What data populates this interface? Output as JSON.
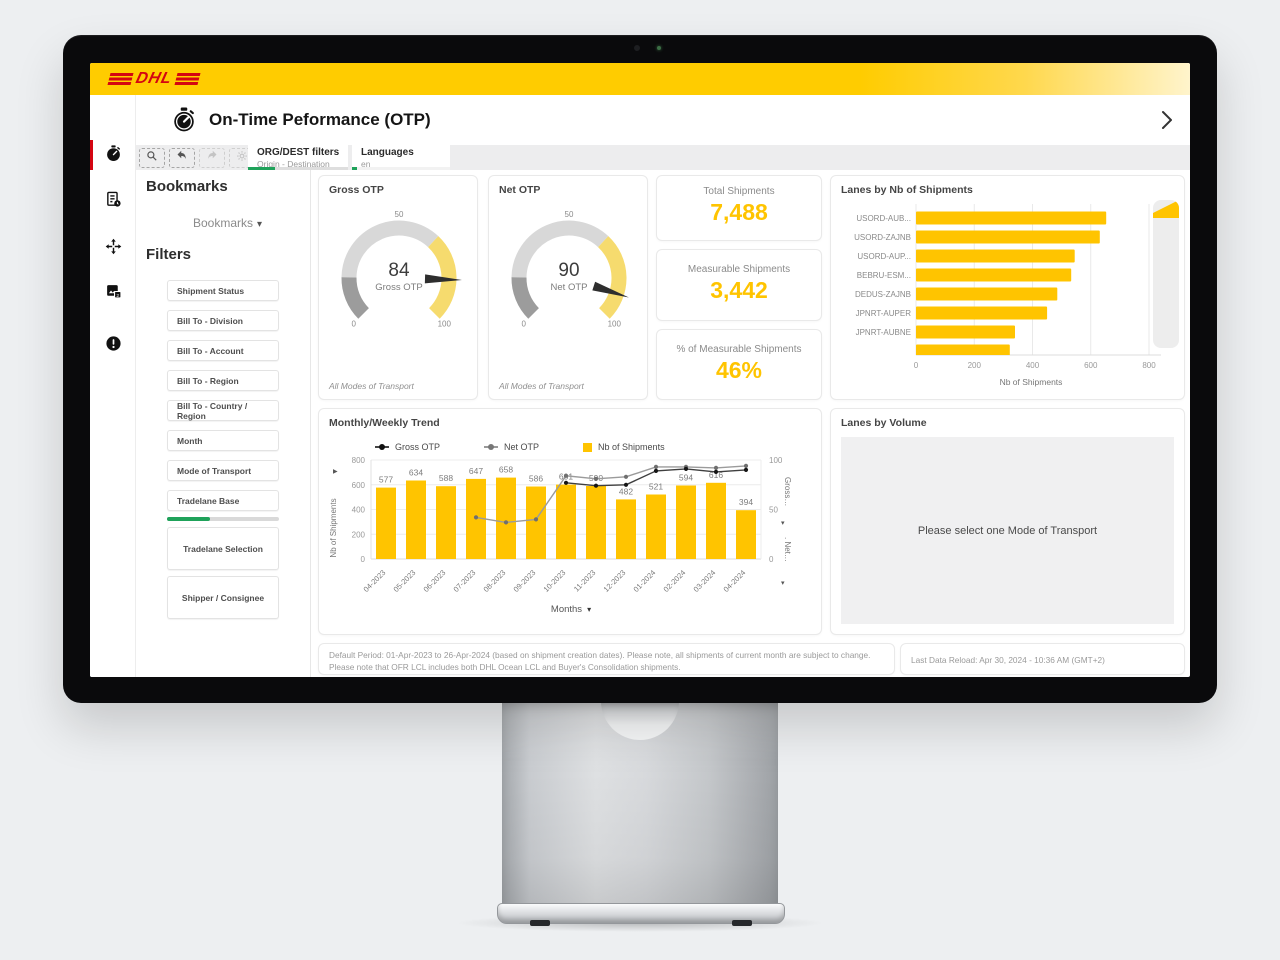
{
  "brand": {
    "name": "DHL"
  },
  "ui_colors": {
    "red": "#D40511",
    "yellow": "#FFCC00",
    "bar_yellow": "#FFC400",
    "green": "#1FA25A"
  },
  "header": {
    "title": "On-Time Peformance (OTP)"
  },
  "tabs": [
    {
      "label": "ORG/DEST filters",
      "sublabel": "Origin - Destination"
    },
    {
      "label": "Languages",
      "sublabel": "en"
    }
  ],
  "toolbar_icons": [
    "search-icon",
    "undo-icon",
    "forward-icon",
    "settings-icon"
  ],
  "sidebar_icons": [
    "stopwatch-icon",
    "report-icon",
    "move-icon",
    "image-icon",
    "alert-icon"
  ],
  "bookmarks": {
    "heading": "Bookmarks",
    "dropdown_label": "Bookmarks",
    "filters_heading": "Filters",
    "filter_buttons": [
      "Shipment Status",
      "Bill To - Division",
      "Bill To - Account",
      "Bill To - Region",
      "Bill To - Country / Region",
      "Month",
      "Mode of Transport",
      "Tradelane Base"
    ],
    "selection_progress": {
      "fraction": 0.38
    },
    "big_buttons": [
      "Tradelane Selection",
      "Shipper / Consignee"
    ]
  },
  "kpis": [
    {
      "label": "Total Shipments",
      "value": "7,488"
    },
    {
      "label": "Measurable Shipments",
      "value": "3,442"
    },
    {
      "label": "% of Measurable Shipments",
      "value": "46%"
    }
  ],
  "lanes_volume": {
    "title": "Lanes by Volume",
    "placeholder": "Please select one Mode of Transport"
  },
  "footer": {
    "default_period_line1": "Default Period: 01-Apr-2023 to 26-Apr-2024 (based on shipment creation dates). Please note, all shipments of current month are subject to change.",
    "default_period_line2": "Please note that OFR LCL includes both DHL Ocean LCL and Buyer's Consolidation shipments.",
    "last_reload": "Last Data Reload: Apr 30, 2024 - 10:36 AM (GMT+2)"
  },
  "chart_data": [
    {
      "type": "gauge",
      "title": "Gross OTP",
      "value": 84,
      "center_label": "Gross OTP",
      "min": 0,
      "max": 100,
      "ticks": [
        0,
        50,
        100
      ],
      "segments": [
        {
          "from": 0,
          "to": 17,
          "color": "#9C9C9C"
        },
        {
          "from": 17,
          "to": 66,
          "color": "#D8D8D8"
        },
        {
          "from": 66,
          "to": 100,
          "color": "#F6DB6E"
        }
      ],
      "footnote": "All Modes of Transport"
    },
    {
      "type": "gauge",
      "title": "Net OTP",
      "value": 90,
      "center_label": "Net OTP",
      "min": 0,
      "max": 100,
      "ticks": [
        0,
        50,
        100
      ],
      "segments": [
        {
          "from": 0,
          "to": 17,
          "color": "#9C9C9C"
        },
        {
          "from": 17,
          "to": 66,
          "color": "#D8D8D8"
        },
        {
          "from": 66,
          "to": 100,
          "color": "#F6DB6E"
        }
      ],
      "footnote": "All Modes of Transport"
    },
    {
      "type": "bar",
      "orientation": "horizontal",
      "title": "Lanes by Nb of Shipments",
      "categories": [
        "USORD-AUB...",
        "USORD-ZAJNB",
        "USORD-AUP...",
        "BEBRU-ESM...",
        "DEDUS-ZAJNB",
        "JPNRT-AUPER",
        "JPNRT-AUBNE",
        ""
      ],
      "values": [
        653,
        631,
        545,
        533,
        485,
        450,
        340,
        322
      ],
      "xlabel": "Nb of Shipments",
      "xticks": [
        0,
        200,
        400,
        600,
        800
      ],
      "xmax": 800,
      "bar_color": "#FFC400",
      "grid": true
    },
    {
      "type": "combo",
      "title": "Monthly/Weekly Trend",
      "categories": [
        "04-2023",
        "05-2023",
        "06-2023",
        "07-2023",
        "08-2023",
        "09-2023",
        "10-2023",
        "11-2023",
        "12-2023",
        "01-2024",
        "02-2024",
        "03-2024",
        "04-2024"
      ],
      "series": [
        {
          "name": "Gross OTP",
          "type": "line",
          "axis": "right",
          "color": "#3F3F3F",
          "marker_color": "#151515",
          "values": [
            null,
            null,
            null,
            null,
            null,
            null,
            77,
            74,
            75,
            89,
            91,
            88,
            90
          ]
        },
        {
          "name": "Net OTP",
          "type": "line",
          "axis": "right",
          "color": "#9B9B9B",
          "marker_color": "#6F6F6F",
          "values": [
            null,
            null,
            null,
            42,
            37,
            40,
            84,
            81,
            83,
            93,
            93,
            92,
            94
          ]
        },
        {
          "name": "Nb of Shipments",
          "type": "bar",
          "axis": "left",
          "color": "#FFC400",
          "values": [
            577,
            634,
            588,
            647,
            658,
            586,
            601,
            590,
            482,
            521,
            594,
            616,
            394
          ]
        }
      ],
      "left_axis": {
        "title": "Nb of Shipments",
        "ticks": [
          0,
          200,
          400,
          600,
          800
        ],
        "max": 800
      },
      "right_axis": {
        "titles": [
          "Gross…",
          ". Net…"
        ],
        "ticks": [
          0,
          50,
          100
        ],
        "max": 100
      },
      "xlabel": "Months",
      "grid": true,
      "legend_position": "top"
    }
  ]
}
